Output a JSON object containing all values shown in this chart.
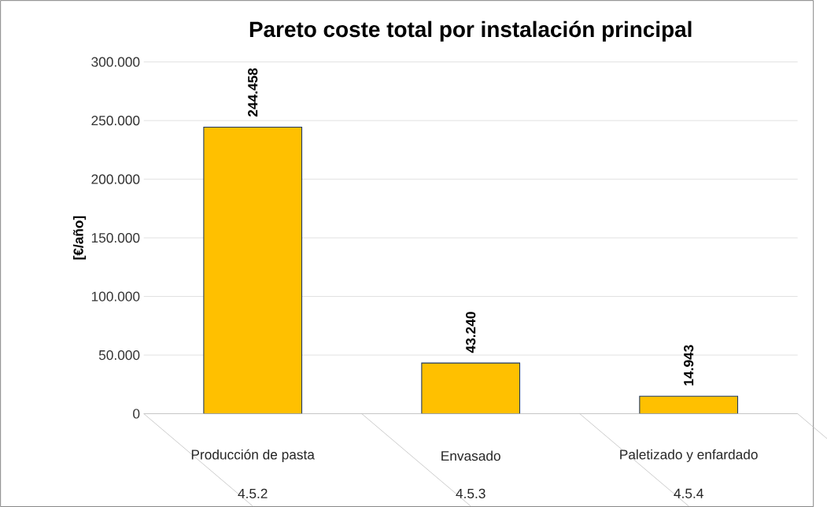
{
  "chart_data": {
    "type": "bar",
    "title": "Pareto coste total por instalación principal",
    "ylabel": "[€/año]",
    "categories": [
      "Producción de pasta",
      "Envasado",
      "Paletizado y enfardado"
    ],
    "annotations": [
      "4.5.2",
      "4.5.3",
      "4.5.4"
    ],
    "values": [
      244458,
      43240,
      14943
    ],
    "value_labels": [
      "244.458",
      "43.240",
      "14.943"
    ],
    "color": "#ffc000",
    "ylim": [
      0,
      300000
    ],
    "yticks": [
      0,
      {
        "value": 50000,
        "label": "50.000"
      },
      {
        "value": 100000,
        "label": "100.000"
      },
      {
        "value": 150000,
        "label": "150.000"
      },
      {
        "value": 200000,
        "label": "200.000"
      },
      {
        "value": 250000,
        "label": "250.000"
      },
      {
        "value": 300000,
        "label": "300.000"
      }
    ],
    "grid": "y"
  }
}
